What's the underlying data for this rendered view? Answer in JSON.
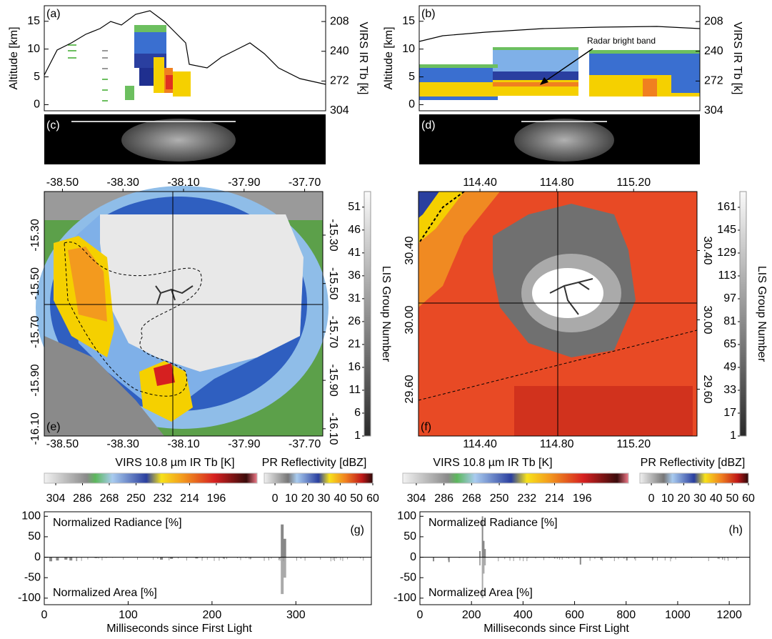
{
  "chart_data": [
    {
      "type": "profile",
      "label": "(a)",
      "ylabel": "Altitude [km]",
      "y2label": "VIRS IR Tb [k]",
      "ylim": [
        -1.1,
        17.8
      ],
      "yticks": [
        0,
        5,
        10,
        15
      ],
      "y2lim": [
        304,
        191
      ],
      "y2ticks": [
        208,
        240,
        272,
        304
      ]
    },
    {
      "type": "profile",
      "label": "(b)",
      "ylabel": "Altitude [km]",
      "y2label": "VIRS IR Tb [k]",
      "ylim": [
        -1.1,
        17.8
      ],
      "yticks": [
        0,
        5,
        10,
        15
      ],
      "y2lim": [
        304,
        191
      ],
      "y2ticks": [
        208,
        240,
        272,
        304
      ],
      "annotation": "Radar bright band"
    },
    {
      "type": "strip",
      "label": "(c)"
    },
    {
      "type": "strip",
      "label": "(d)"
    },
    {
      "type": "map",
      "label": "(e)",
      "xlim": [
        -38.56,
        -37.64
      ],
      "xticks": [
        {
          "value": -38.5,
          "label": "-38.50"
        },
        {
          "value": -38.3,
          "label": "-38.30"
        },
        {
          "value": -38.1,
          "label": "-38.10"
        },
        {
          "value": -37.9,
          "label": "-37.90"
        },
        {
          "value": -37.7,
          "label": "-37.70"
        }
      ],
      "ylim": [
        -16.13,
        -15.12
      ],
      "yticks": [
        {
          "value": -15.3,
          "label": "-15.30"
        },
        {
          "value": -15.5,
          "label": "-15.50"
        },
        {
          "value": -15.7,
          "label": "-15.70"
        },
        {
          "value": -15.9,
          "label": "-15.90"
        },
        {
          "value": -16.1,
          "label": "-16.10"
        }
      ],
      "clabel": "LIS Group Number",
      "clim": [
        1,
        54.4
      ],
      "cticks": [
        1,
        6,
        11,
        16,
        21,
        26,
        31,
        36,
        41,
        46,
        51
      ]
    },
    {
      "type": "map",
      "label": "(f)",
      "xlim": [
        114.08,
        115.53
      ],
      "xticks": [
        {
          "value": 114.4,
          "label": "114.40"
        },
        {
          "value": 114.8,
          "label": "114.80"
        },
        {
          "value": 115.2,
          "label": "115.20"
        }
      ],
      "ylim": [
        29.33,
        30.74
      ],
      "yticks": [
        {
          "value": 29.6,
          "label": "29.60"
        },
        {
          "value": 30,
          "label": "30.00"
        },
        {
          "value": 30.4,
          "label": "30.40"
        }
      ],
      "clabel": "LIS Group Number",
      "clim": [
        1,
        172
      ],
      "cticks": [
        1,
        17,
        33,
        49,
        65,
        81,
        97,
        113,
        129,
        145,
        161
      ]
    },
    {
      "type": "colorbar",
      "title": "VIRS 10.8 µm IR Tb [K]",
      "palette": "tb",
      "clim": [
        311.7,
        168.6
      ],
      "cticks": [
        304,
        286,
        268,
        250,
        232,
        214,
        196
      ]
    },
    {
      "type": "colorbar",
      "title": "PR Reflectivity [dBZ]",
      "palette": "pr",
      "clim": [
        -6.6,
        60
      ],
      "cticks": [
        0,
        10,
        20,
        30,
        40,
        50,
        60
      ]
    },
    {
      "type": "colorbar",
      "title": "VIRS 10.8 µm IR Tb [K]",
      "palette": "tb",
      "clim": [
        312.8,
        165.9
      ],
      "cticks": [
        304,
        286,
        268,
        250,
        232,
        214,
        196
      ]
    },
    {
      "type": "colorbar",
      "title": "PR Reflectivity [dBZ]",
      "palette": "pr",
      "clim": [
        -7.1,
        60
      ],
      "cticks": [
        0,
        10,
        20,
        30,
        40,
        50,
        60
      ]
    },
    {
      "type": "bar",
      "label": "(g)",
      "texts": [
        "Normalized Radiance [%]",
        "Normalized Area [%]"
      ],
      "xlabel": "Milliseconds since First Light",
      "xlim": [
        0,
        390
      ],
      "xticks": [
        0,
        100,
        200,
        300
      ],
      "ylim": [
        -116,
        111
      ],
      "yticks": [
        -100,
        -50,
        0,
        50,
        100
      ]
    },
    {
      "type": "bar",
      "label": "(h)",
      "texts": [
        "Normalized Radiance [%]",
        "Normalized Area [%]"
      ],
      "xlabel": "Milliseconds since First Light",
      "xlim": [
        0,
        1280
      ],
      "xticks": [
        0,
        200,
        400,
        600,
        800,
        1000,
        1200
      ],
      "ylim": [
        -116,
        111
      ],
      "yticks": [
        -100,
        -50,
        0,
        50,
        100
      ]
    }
  ]
}
